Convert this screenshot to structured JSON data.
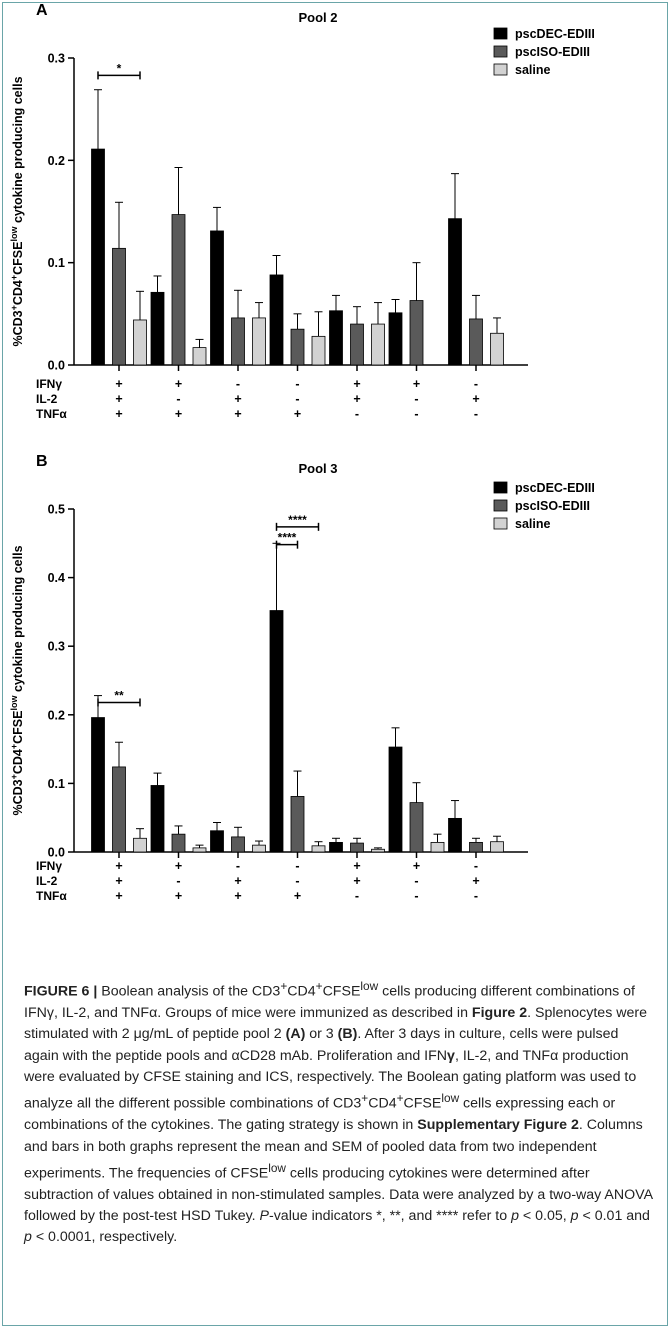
{
  "chart_data": [
    {
      "type": "bar",
      "panel": "A",
      "title": "Pool 2",
      "ylabel_parts": [
        "%CD3",
        "+",
        "CD4",
        "+",
        "CFSE",
        "low",
        " cytokine producing cells"
      ],
      "ylim": [
        0,
        0.3
      ],
      "yticks": [
        "0.0",
        "0.1",
        "0.2",
        "0.3"
      ],
      "row_labels": [
        "IFNγ",
        "IL-2",
        "TNFα"
      ],
      "columns": [
        [
          "+",
          "+",
          "+"
        ],
        [
          "+",
          "-",
          "+"
        ],
        [
          "-",
          "+",
          "+"
        ],
        [
          "-",
          "-",
          "+"
        ],
        [
          "+",
          "+",
          "-"
        ],
        [
          "+",
          "-",
          "-"
        ],
        [
          "-",
          "+",
          "-"
        ]
      ],
      "series": [
        {
          "name": "pscDEC-EDIII",
          "color": "#000000",
          "values": [
            0.211,
            0.071,
            0.131,
            0.088,
            0.053,
            0.051,
            0.143
          ],
          "errors": [
            0.058,
            0.016,
            0.023,
            0.019,
            0.015,
            0.013,
            0.044
          ]
        },
        {
          "name": "pscISO-EDIII",
          "color": "#5a5a5a",
          "values": [
            0.114,
            0.147,
            0.046,
            0.035,
            0.04,
            0.063,
            0.045
          ],
          "errors": [
            0.045,
            0.046,
            0.027,
            0.015,
            0.017,
            0.037,
            0.023
          ]
        },
        {
          "name": "saline",
          "color": "#d2d2d2",
          "values": [
            0.044,
            0.017,
            0.046,
            0.028,
            0.04,
            null,
            0.031
          ],
          "errors": [
            0.028,
            0.008,
            0.015,
            0.024,
            0.021,
            null,
            0.015
          ]
        }
      ],
      "annotations": [
        {
          "text": "*",
          "group": 0,
          "from_series": 0,
          "to_series": 2,
          "y": 0.283
        }
      ]
    },
    {
      "type": "bar",
      "panel": "B",
      "title": "Pool 3",
      "ylabel_parts": [
        "%CD3",
        "+",
        "CD4",
        "+",
        "CFSE",
        "low",
        " cytokine producing cells"
      ],
      "ylim": [
        0,
        0.5
      ],
      "yticks": [
        "0.0",
        "0.1",
        "0.2",
        "0.3",
        "0.4",
        "0.5"
      ],
      "row_labels": [
        "IFNγ",
        "IL-2",
        "TNFα"
      ],
      "columns": [
        [
          "+",
          "+",
          "+"
        ],
        [
          "+",
          "-",
          "+"
        ],
        [
          "-",
          "+",
          "+"
        ],
        [
          "-",
          "-",
          "+"
        ],
        [
          "+",
          "+",
          "-"
        ],
        [
          "+",
          "-",
          "-"
        ],
        [
          "-",
          "+",
          "-"
        ]
      ],
      "series": [
        {
          "name": "pscDEC-EDIII",
          "color": "#000000",
          "values": [
            0.196,
            0.097,
            0.031,
            0.352,
            0.014,
            0.153,
            0.049
          ],
          "errors": [
            0.032,
            0.018,
            0.012,
            0.098,
            0.006,
            0.028,
            0.026
          ]
        },
        {
          "name": "pscISO-EDIII",
          "color": "#5a5a5a",
          "values": [
            0.124,
            0.026,
            0.022,
            0.081,
            0.013,
            0.072,
            0.014
          ],
          "errors": [
            0.036,
            0.012,
            0.014,
            0.037,
            0.007,
            0.029,
            0.006
          ]
        },
        {
          "name": "saline",
          "color": "#d2d2d2",
          "values": [
            0.02,
            0.006,
            0.01,
            0.009,
            0.004,
            0.014,
            0.015
          ],
          "errors": [
            0.014,
            0.004,
            0.006,
            0.006,
            0.002,
            0.012,
            0.008
          ]
        }
      ],
      "annotations": [
        {
          "text": "**",
          "group": 0,
          "from_series": 0,
          "to_series": 2,
          "y": 0.218
        },
        {
          "text": "****",
          "group": 3,
          "from_series": 0,
          "to_series": 2,
          "y": 0.474
        },
        {
          "text": "****",
          "group": 3,
          "from_series": 0,
          "to_series": 1,
          "y": 0.448
        }
      ]
    }
  ],
  "caption": {
    "label": "FIGURE 6 |",
    "p1": " Boolean analysis of the CD3",
    "s1": "+",
    "p2": "CD4",
    "s2": "+",
    "p3": "CFSE",
    "s3": "low",
    "p4": " cells producing different combinations of IFNγ, IL-2, and TNFα. Groups of mice were immunized as described in ",
    "b1": "Figure 2",
    "p5": ". Splenocytes were stimulated with 2 μg/mL of peptide pool 2 ",
    "b2": "(A)",
    "p6": " or 3 ",
    "b3": "(B)",
    "p7": ". After 3 days in culture, cells were pulsed again with the peptide pools and αCD28 mAb. Proliferation and IFN",
    "b4": "γ",
    "p8": ", IL-2, and TNFα production were evaluated by CFSE staining and ICS, respectively. The Boolean gating platform was used to analyze all the different possible combinations of CD3",
    "s4": "+",
    "p9": "CD4",
    "s5": "+",
    "p10": "CFSE",
    "s6": "low",
    "p11": " cells expressing each or combinations of the cytokines. The gating strategy is shown in ",
    "b5": "Supplementary Figure 2",
    "p12": ". Columns and bars in both graphs represent the mean and SEM of pooled data from two independent experiments. The frequencies of CFSE",
    "s7": "low",
    "p13": " cells producing cytokines were determined after subtraction of values obtained in non-stimulated samples. Data were analyzed by a two-way ANOVA followed by the post-test HSD Tukey. ",
    "i1": "P",
    "p14": "-value indicators *, **, and **** refer to ",
    "i2": "p",
    "p15": " < 0.05, ",
    "i3": "p",
    "p16": " < 0.01 and ",
    "i4": "p",
    "p17": " < 0.0001, respectively."
  }
}
